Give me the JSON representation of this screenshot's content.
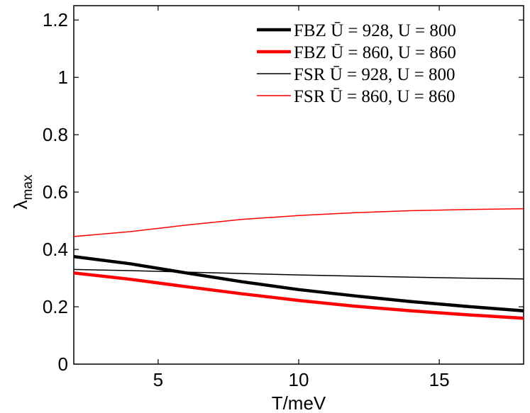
{
  "chart_data": {
    "type": "line",
    "title": "",
    "xlabel": "T/meV",
    "ylabel_main": "λ",
    "ylabel_sub": "max",
    "xlim": [
      2,
      18
    ],
    "ylim": [
      0,
      1.25
    ],
    "xticks": [
      5,
      10,
      15
    ],
    "xtick_labels": [
      "5",
      "10",
      "15"
    ],
    "yticks": [
      0,
      0.2,
      0.4,
      0.6,
      0.8,
      1,
      1.2
    ],
    "ytick_labels": [
      "0",
      "0.2",
      "0.4",
      "0.6",
      "0.8",
      "1",
      "1.2"
    ],
    "grid": false,
    "legend_position": "top-right",
    "series": [
      {
        "name": "FBZ Ū = 928, U = 800",
        "color": "#000000",
        "weight": "thick",
        "x": [
          2,
          4,
          6,
          8,
          10,
          12,
          14,
          16,
          18
        ],
        "y": [
          0.375,
          0.35,
          0.318,
          0.287,
          0.26,
          0.238,
          0.218,
          0.201,
          0.186
        ]
      },
      {
        "name": "FBZ Ū = 860, U = 860",
        "color": "#ff0000",
        "weight": "thick",
        "x": [
          2,
          4,
          6,
          8,
          10,
          12,
          14,
          16,
          18
        ],
        "y": [
          0.318,
          0.296,
          0.27,
          0.245,
          0.222,
          0.202,
          0.186,
          0.172,
          0.16
        ]
      },
      {
        "name": "FSR Ū = 928, U = 800",
        "color": "#000000",
        "weight": "thin",
        "x": [
          2,
          4,
          6,
          8,
          10,
          12,
          14,
          16,
          18
        ],
        "y": [
          0.33,
          0.326,
          0.321,
          0.316,
          0.311,
          0.307,
          0.303,
          0.3,
          0.297
        ]
      },
      {
        "name": "FSR Ū = 860, U = 860",
        "color": "#ff0000",
        "weight": "thin",
        "x": [
          2,
          4,
          6,
          8,
          10,
          12,
          14,
          16,
          18
        ],
        "y": [
          0.445,
          0.462,
          0.485,
          0.505,
          0.518,
          0.528,
          0.535,
          0.539,
          0.542
        ]
      }
    ]
  }
}
